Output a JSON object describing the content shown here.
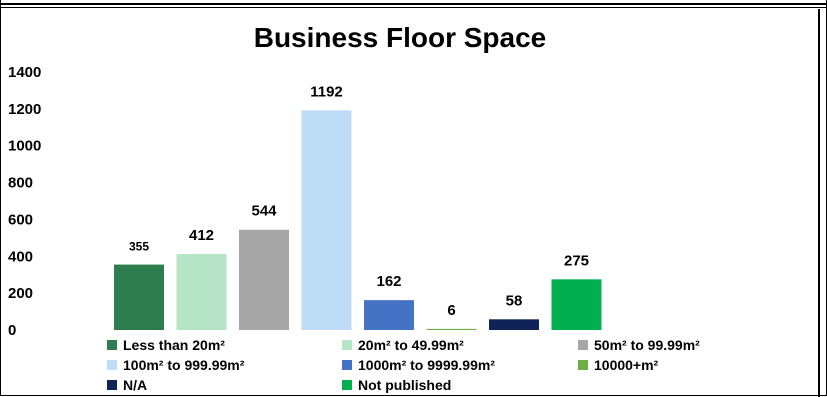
{
  "chart_data": {
    "type": "bar",
    "title": "Business Floor Space",
    "xlabel": "",
    "ylabel": "",
    "ylim": [
      0,
      1400
    ],
    "yticks": [
      0,
      200,
      400,
      600,
      800,
      1000,
      1200,
      1400
    ],
    "grid": false,
    "legend_position": "bottom",
    "categories": [
      "Less than 20m²",
      "20m² to 49.99m²",
      "50m² to 99.99m²",
      "100m² to 999.99m²",
      "1000m² to 9999.99m²",
      "10000+m²",
      "N/A",
      "Not published"
    ],
    "values": [
      355,
      412,
      544,
      1192,
      162,
      6,
      58,
      275
    ],
    "colors": [
      "#2e7d4f",
      "#b5e4c6",
      "#a6a6a6",
      "#bfdcf7",
      "#4472c4",
      "#70ad47",
      "#0f2356",
      "#00b050"
    ]
  }
}
